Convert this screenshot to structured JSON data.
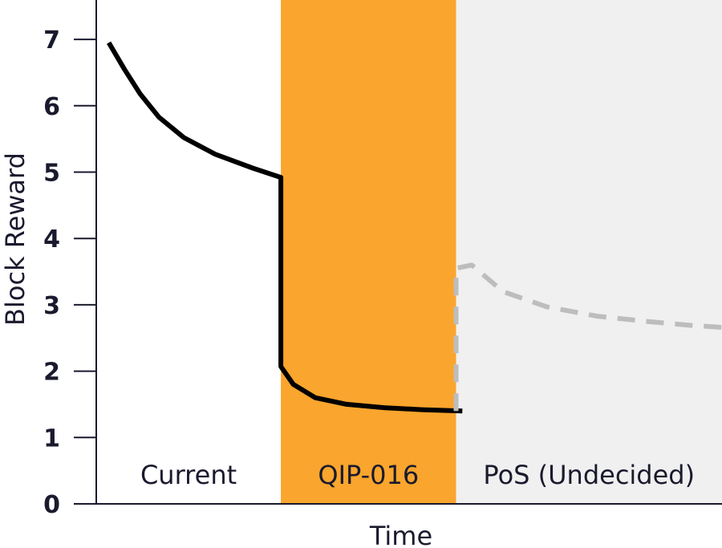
{
  "chart_data": {
    "type": "line",
    "title": "",
    "xlabel": "Time",
    "ylabel": "Block Reward",
    "ylim": [
      0,
      7
    ],
    "yticks": [
      "0",
      "1",
      "2",
      "3",
      "4",
      "5",
      "6",
      "7"
    ],
    "grid": false,
    "regions": [
      {
        "label": "Current",
        "x_start": 0,
        "x_end": 0.295,
        "color": "#ffffff"
      },
      {
        "label": "QIP-016",
        "x_start": 0.295,
        "x_end": 0.575,
        "color": "#FAA52D"
      },
      {
        "label": "PoS (Undecided)",
        "x_start": 0.575,
        "x_end": 1.0,
        "color": "#F0F0F0"
      }
    ],
    "series": [
      {
        "style": "solid",
        "color": "#000000",
        "x": [
          0.02,
          0.045,
          0.07,
          0.1,
          0.14,
          0.19,
          0.25,
          0.295,
          0.295,
          0.315,
          0.35,
          0.4,
          0.46,
          0.52,
          0.585
        ],
        "y": [
          6.95,
          6.55,
          6.18,
          5.83,
          5.52,
          5.27,
          5.06,
          4.92,
          2.07,
          1.8,
          1.6,
          1.5,
          1.45,
          1.42,
          1.4
        ]
      },
      {
        "style": "dashed",
        "color": "#BDBDBD",
        "x": [
          0.575,
          0.575,
          0.6,
          0.65,
          0.72,
          0.8,
          0.88,
          0.95,
          1.0
        ],
        "y": [
          1.4,
          3.55,
          3.6,
          3.2,
          2.97,
          2.83,
          2.75,
          2.69,
          2.66
        ]
      }
    ]
  }
}
